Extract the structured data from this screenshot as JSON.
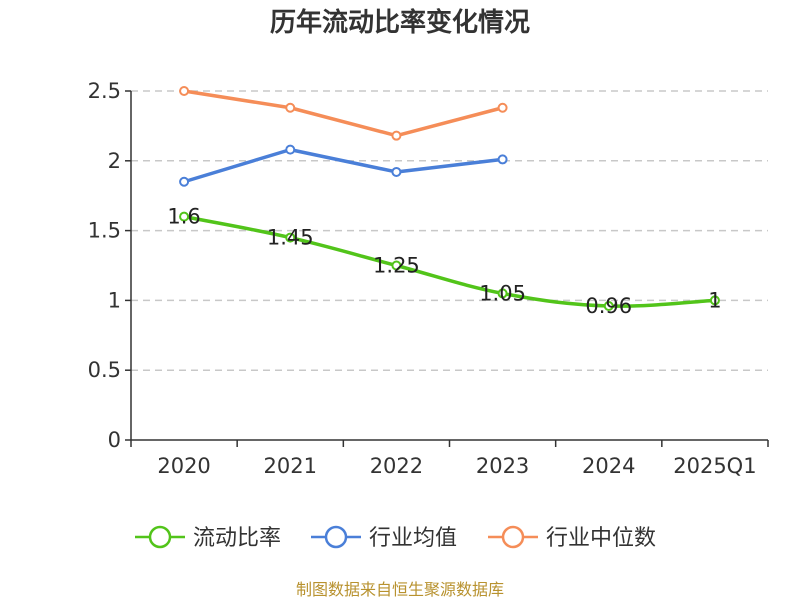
{
  "chart_data": {
    "type": "line",
    "title": "历年流动比率变化情况",
    "categories": [
      "2020",
      "2021",
      "2022",
      "2023",
      "2024",
      "2025Q1"
    ],
    "ylim": [
      0,
      2.5
    ],
    "yticks": [
      "0",
      "0.5",
      "1",
      "1.5",
      "2",
      "2.5"
    ],
    "grid": true,
    "legend_position": "bottom",
    "series": [
      {
        "name": "流动比率",
        "color": "#52c41a",
        "values": [
          1.6,
          1.45,
          1.25,
          1.05,
          0.96,
          1
        ],
        "labels": [
          "1.6",
          "1.45",
          "1.25",
          "1.05",
          "0.96",
          "1"
        ]
      },
      {
        "name": "行业均值",
        "color": "#4a7fd8",
        "values": [
          1.85,
          2.08,
          1.92,
          2.01,
          null,
          null
        ]
      },
      {
        "name": "行业中位数",
        "color": "#f58d58",
        "values": [
          2.5,
          2.38,
          2.18,
          2.38,
          null,
          null
        ]
      }
    ]
  },
  "source": "制图数据来自恒生聚源数据库"
}
